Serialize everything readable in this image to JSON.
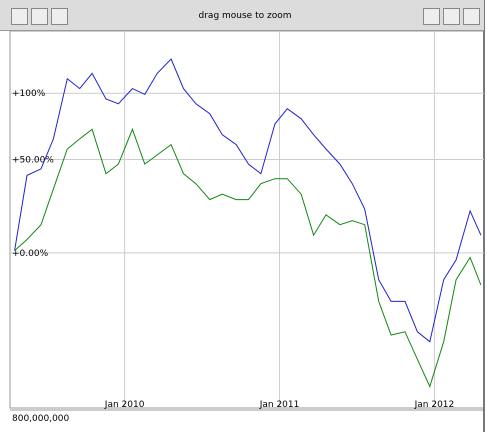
{
  "toolbar": {
    "hint": "drag mouse to zoom"
  },
  "chart_data": {
    "type": "line",
    "log": true,
    "grid": true,
    "x": [
      2009.29,
      2009.37,
      2009.46,
      2009.54,
      2009.63,
      2009.71,
      2009.79,
      2009.88,
      2009.96,
      2010.05,
      2010.13,
      2010.21,
      2010.3,
      2010.38,
      2010.46,
      2010.55,
      2010.63,
      2010.72,
      2010.8,
      2010.88,
      2010.97,
      2011.05,
      2011.14,
      2011.22,
      2011.3,
      2011.39,
      2011.47,
      2011.55,
      2011.64,
      2011.72,
      2011.81,
      2011.89,
      2011.97,
      2012.06,
      2012.14,
      2012.23,
      2012.3
    ],
    "series": [
      {
        "color": "#2222cc",
        "values": [
          1,
          40,
          44,
          64,
          113,
          104,
          118,
          95,
          91,
          104,
          99,
          118,
          132,
          104,
          91,
          83,
          67,
          60,
          47,
          41,
          75,
          87,
          79,
          67,
          57,
          47,
          35,
          21,
          -11,
          -19,
          -19,
          -29,
          -32,
          -11,
          -3,
          20,
          8
        ]
      },
      {
        "color": "#118811",
        "values": [
          1,
          6,
          13,
          32,
          57,
          64,
          71,
          41,
          47,
          71,
          47,
          53,
          60,
          41,
          35,
          26,
          29,
          26,
          26,
          35,
          38,
          38,
          29,
          8,
          18,
          13,
          15,
          13,
          -19,
          -30,
          -29,
          -37,
          -44,
          -32,
          -11,
          -2,
          -13
        ]
      }
    ],
    "xlim": [
      2009.26,
      2012.32
    ],
    "xticks": [
      {
        "value": 2010,
        "label": "Jan 2010"
      },
      {
        "value": 2011,
        "label": "Jan 2011"
      },
      {
        "value": 2012,
        "label": "Jan 2012"
      }
    ],
    "ylim": [
      -49,
      162
    ],
    "yticks": [
      {
        "value": 0,
        "label": "+0.00%"
      },
      {
        "value": 50,
        "label": "+50.00%"
      },
      {
        "value": 100,
        "label": "+100%"
      }
    ],
    "volume_label": "800,000,000"
  }
}
